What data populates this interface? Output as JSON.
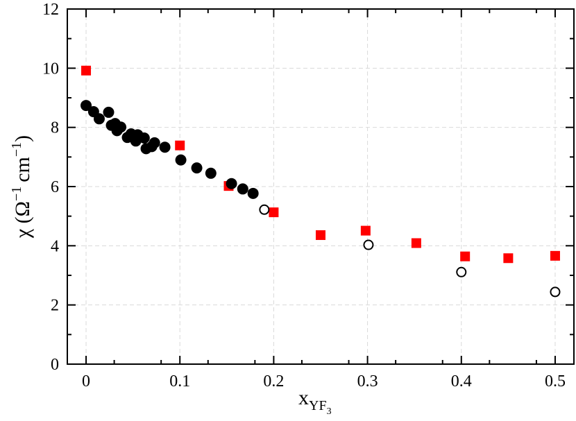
{
  "chart_data": {
    "type": "scatter",
    "title": "",
    "xlabel": "x",
    "xlabel_subscript": "YF",
    "xlabel_subsubscript": "3",
    "ylabel": "χ (Ω",
    "ylabel_sup1": "−1",
    "ylabel_mid": "cm",
    "ylabel_sup2": "−1",
    "ylabel_end": ")",
    "xlim": [
      -0.02,
      0.52
    ],
    "ylim": [
      0,
      12
    ],
    "xticks": [
      0,
      0.1,
      0.2,
      0.3,
      0.4,
      0.5
    ],
    "xtick_labels": [
      "0",
      "0.1",
      "0.2",
      "0.3",
      "0.4",
      "0.5"
    ],
    "yticks": [
      0,
      2,
      4,
      6,
      8,
      10,
      12
    ],
    "ytick_labels": [
      "0",
      "2",
      "4",
      "6",
      "8",
      "10",
      "12"
    ],
    "grid": true,
    "series": [
      {
        "marker": "square",
        "color": "#ff0000",
        "filled": true,
        "points": [
          [
            0.0,
            9.92
          ],
          [
            0.1,
            7.39
          ],
          [
            0.152,
            6.02
          ],
          [
            0.2,
            5.13
          ],
          [
            0.25,
            4.36
          ],
          [
            0.298,
            4.51
          ],
          [
            0.352,
            4.09
          ],
          [
            0.404,
            3.64
          ],
          [
            0.45,
            3.58
          ],
          [
            0.5,
            3.66
          ]
        ]
      },
      {
        "marker": "circle",
        "color": "#000000",
        "filled": true,
        "points": [
          [
            0.0,
            8.74
          ],
          [
            0.008,
            8.53
          ],
          [
            0.014,
            8.29
          ],
          [
            0.024,
            8.51
          ],
          [
            0.027,
            8.07
          ],
          [
            0.031,
            8.13
          ],
          [
            0.033,
            7.89
          ],
          [
            0.037,
            8.01
          ],
          [
            0.044,
            7.66
          ],
          [
            0.048,
            7.78
          ],
          [
            0.053,
            7.54
          ],
          [
            0.055,
            7.75
          ],
          [
            0.062,
            7.64
          ],
          [
            0.064,
            7.28
          ],
          [
            0.07,
            7.35
          ],
          [
            0.073,
            7.48
          ],
          [
            0.084,
            7.33
          ],
          [
            0.101,
            6.9
          ],
          [
            0.118,
            6.63
          ],
          [
            0.133,
            6.45
          ],
          [
            0.155,
            6.1
          ],
          [
            0.167,
            5.92
          ],
          [
            0.178,
            5.77
          ]
        ]
      },
      {
        "marker": "circle",
        "color": "#000000",
        "filled": false,
        "points": [
          [
            0.19,
            5.22
          ],
          [
            0.301,
            4.03
          ],
          [
            0.4,
            3.11
          ],
          [
            0.5,
            2.44
          ]
        ]
      }
    ]
  }
}
